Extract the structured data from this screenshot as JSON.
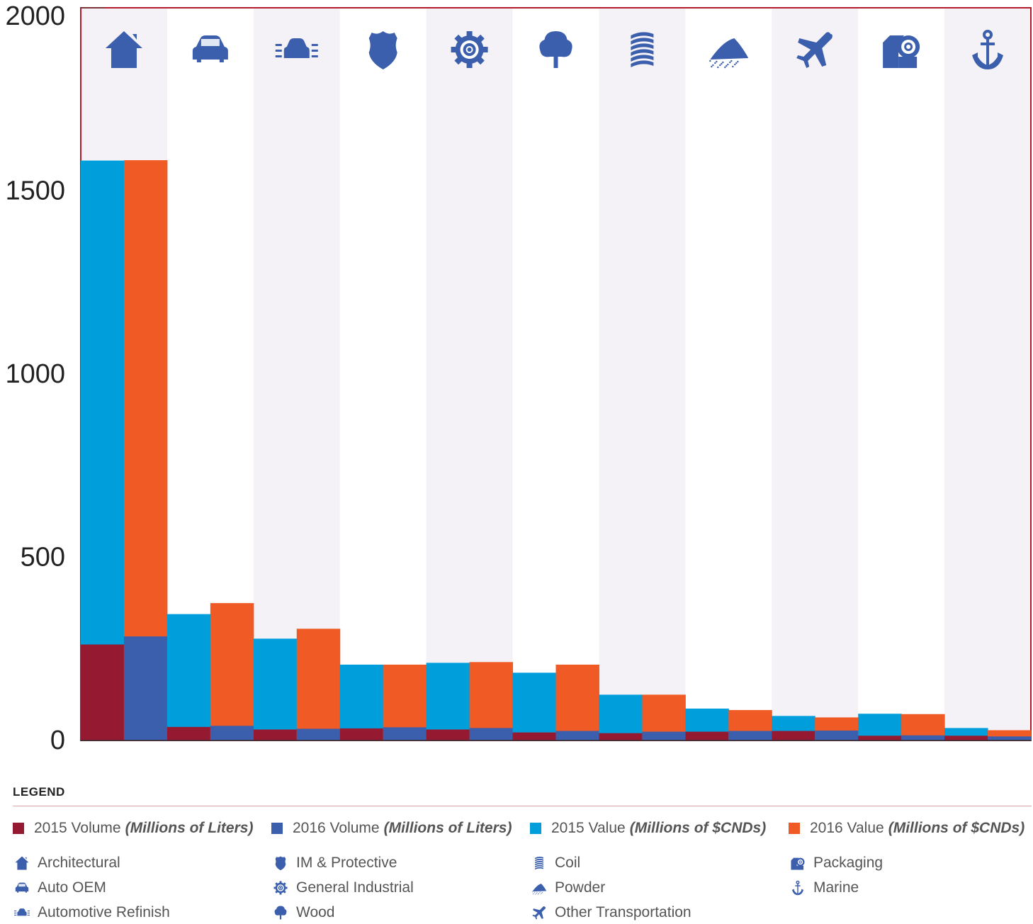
{
  "chart_data": {
    "type": "bar",
    "categories": [
      "Architectural",
      "Auto OEM",
      "Automotive Refinish",
      "IM & Protective",
      "General Industrial",
      "Wood",
      "Coil",
      "Powder",
      "Other Transportation",
      "Packaging",
      "Marine"
    ],
    "category_icons": [
      "house-icon",
      "car-icon",
      "car-refinish-icon",
      "shield-icon",
      "gear-icon",
      "tree-icon",
      "coil-icon",
      "powder-icon",
      "airplane-icon",
      "package-gear-icon",
      "anchor-icon"
    ],
    "series": [
      {
        "name": "2015 Volume",
        "unit": "(Millions of Liters)",
        "color": "#951a31",
        "values": [
          262,
          37,
          30,
          33,
          30,
          22,
          20,
          24,
          26,
          13,
          13
        ]
      },
      {
        "name": "2016 Volume",
        "unit": "(Millions of Liters)",
        "color": "#3b5fad",
        "values": [
          284,
          40,
          32,
          36,
          34,
          26,
          24,
          26,
          27,
          14,
          11
        ]
      },
      {
        "name": "2015 Value",
        "unit": "(Millions of $CNDs)",
        "color": "#009fdc",
        "values": [
          1583,
          345,
          278,
          207,
          212,
          185,
          125,
          87,
          67,
          73,
          34
        ]
      },
      {
        "name": "2016 Value",
        "unit": "(Millions of $CNDs)",
        "color": "#f05a24",
        "values": [
          1584,
          375,
          305,
          207,
          214,
          207,
          125,
          83,
          63,
          72,
          28
        ]
      }
    ],
    "bar_groups": [
      [
        "2015 Value",
        "2015 Volume"
      ],
      [
        "2016 Value",
        "2016 Volume"
      ]
    ],
    "ylim": [
      0,
      2000
    ],
    "yticks": [
      "0",
      "500",
      "1000",
      "1500",
      "2000"
    ],
    "xlabel": "",
    "ylabel": "",
    "grid": false,
    "legend_position": "bottom"
  },
  "legend": {
    "title": "LEGEND",
    "series": [
      {
        "label": "2015 Volume",
        "unit": "(Millions of Liters)"
      },
      {
        "label": "2016 Volume",
        "unit": "(Millions of Liters)"
      },
      {
        "label": "2015 Value",
        "unit": "(Millions of $CNDs)"
      },
      {
        "label": "2016 Value",
        "unit": "(Millions of $CNDs)"
      }
    ],
    "categories": [
      "Architectural",
      "Auto OEM",
      "Automotive Refinish",
      "IM & Protective",
      "General Industrial",
      "Wood",
      "Coil",
      "Powder",
      "Other Transportation",
      "Packaging",
      "Marine"
    ]
  },
  "colors": {
    "frame": "#b31b2b",
    "icon": "#3b5fad",
    "band": "#f4f2f6"
  }
}
